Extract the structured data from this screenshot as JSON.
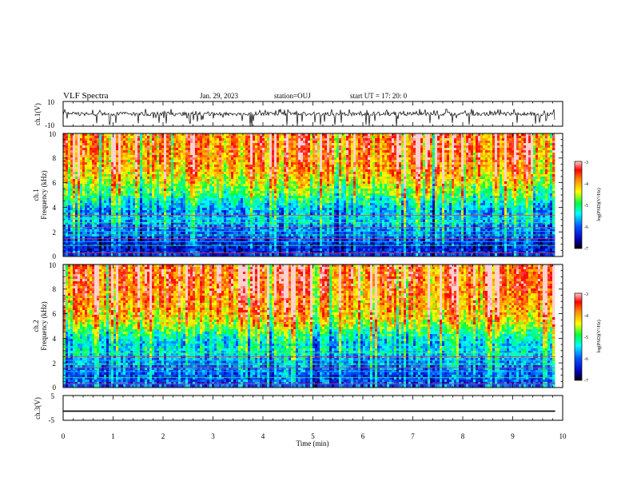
{
  "header": {
    "title": "VLF Spectra",
    "date": "Jan. 29, 2023",
    "station": "station=OUJ",
    "start_ut": "start  UT =   17: 20: 0"
  },
  "chart_data": [
    {
      "id": "ch1-waveform",
      "type": "line",
      "ylabel": "ch.1(V)",
      "ylim": [
        -10,
        10
      ],
      "ytick_labels": [
        "10",
        "-10"
      ],
      "xlim": [
        0,
        10
      ],
      "data_end_min": 9.85,
      "baseline": 0,
      "fluctuation_range": [
        -2,
        2
      ],
      "spike_range": [
        -10,
        4
      ]
    },
    {
      "id": "ch1-spectrogram",
      "type": "heatmap",
      "ylabel_channel": "ch.1",
      "ylabel": "Frequency (kHz)",
      "ylim": [
        0,
        10
      ],
      "ytick_labels": [
        "0",
        "2",
        "4",
        "6",
        "8",
        "10"
      ],
      "xlim": [
        0,
        10
      ],
      "data_end_min": 9.85,
      "colorbar": {
        "label": "log(PSD)(V²/Hz)",
        "range": [
          -7,
          -3
        ],
        "tick_labels": [
          "-3",
          "-4",
          "-5",
          "-6",
          "-7"
        ]
      },
      "profile_log_psd": {
        "freq_khz": [
          0,
          0.5,
          1,
          1.5,
          2,
          2.5,
          3,
          3.5,
          4,
          4.5,
          5,
          5.5,
          6,
          7,
          8,
          9,
          10
        ],
        "value": [
          -6.2,
          -6.4,
          -6.3,
          -6.1,
          -5.9,
          -5.8,
          -5.5,
          -5.8,
          -5.6,
          -5.3,
          -5.0,
          -4.8,
          -4.5,
          -4.1,
          -3.9,
          -3.8,
          -3.8
        ]
      },
      "emission_lines_khz": [
        0.3,
        0.9,
        1.2,
        1.45,
        1.75,
        2.05,
        2.35,
        2.75,
        3.1,
        3.35
      ]
    },
    {
      "id": "ch2-spectrogram",
      "type": "heatmap",
      "ylabel_channel": "ch.2",
      "ylabel": "Frequency (kHz)",
      "ylim": [
        0,
        10
      ],
      "ytick_labels": [
        "0",
        "2",
        "4",
        "6",
        "8",
        "10"
      ],
      "xlim": [
        0,
        10
      ],
      "data_end_min": 9.85,
      "colorbar": {
        "label": "log(PSD)(V²/Hz)",
        "range": [
          -7,
          -3
        ],
        "tick_labels": [
          "-3",
          "-4",
          "-5",
          "-6",
          "-7"
        ]
      },
      "profile_log_psd": {
        "freq_khz": [
          0,
          0.5,
          1,
          1.5,
          2,
          2.5,
          3,
          3.5,
          4,
          4.5,
          5,
          5.5,
          6,
          7,
          8,
          9,
          10
        ],
        "value": [
          -6.0,
          -6.1,
          -6.0,
          -5.9,
          -5.8,
          -5.6,
          -5.4,
          -5.5,
          -5.3,
          -5.0,
          -4.6,
          -4.3,
          -4.1,
          -3.9,
          -3.7,
          -3.6,
          -3.6
        ]
      },
      "emission_lines_khz": [
        0.3,
        0.8,
        1.3,
        1.6,
        1.9,
        2.2,
        2.5,
        2.8
      ]
    },
    {
      "id": "ch3-waveform",
      "type": "line",
      "ylabel": "ch.3(V)",
      "ylim": [
        -5,
        5
      ],
      "ytick_labels": [
        "5",
        "0",
        "-5"
      ],
      "xlim": [
        0,
        10
      ],
      "data_end_min": 9.85,
      "value": -1.3
    }
  ],
  "xaxis": {
    "label": "Time (min)",
    "ticks": [
      0,
      1,
      2,
      3,
      4,
      5,
      6,
      7,
      8,
      9,
      10
    ],
    "tick_labels": [
      "0",
      "1",
      "2",
      "3",
      "4",
      "5",
      "6",
      "7",
      "8",
      "9",
      "10"
    ]
  }
}
